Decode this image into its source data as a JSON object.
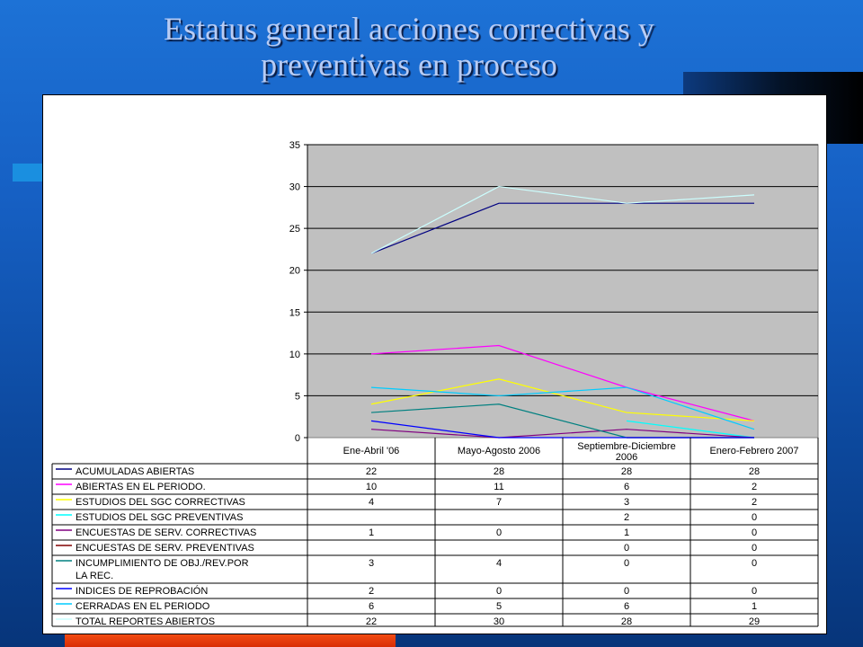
{
  "slide": {
    "title_line1": "Estatus general acciones correctivas y",
    "title_line2": "preventivas en proceso"
  },
  "colors": {
    "background": "#1660c4",
    "plot_area": "#c0c0c0",
    "accent_orange": "#e8410f"
  },
  "chart_data": {
    "type": "line",
    "categories": [
      "Ene-Abril '06",
      "Mayo-Agosto 2006",
      "Septiembre-Diciembre 2006",
      "Enero-Febrero 2007"
    ],
    "ylim": [
      0,
      35
    ],
    "yticks": [
      0,
      5,
      10,
      15,
      20,
      25,
      30,
      35
    ],
    "grid": true,
    "legend_placement": "data-table-below",
    "series": [
      {
        "name": "ACUMULADAS ABIERTAS",
        "color": "#000080",
        "values": [
          22,
          28,
          28,
          28
        ]
      },
      {
        "name": " ABIERTAS EN EL PERIODO.",
        "color": "#ff00ff",
        "values": [
          10,
          11,
          6,
          2
        ]
      },
      {
        "name": "ESTUDIOS DEL SGC CORRECTIVAS",
        "color": "#ffff00",
        "values": [
          4,
          7,
          3,
          2
        ]
      },
      {
        "name": "ESTUDIOS DEL SGC PREVENTIVAS",
        "color": "#00ffff",
        "values": [
          null,
          null,
          2,
          0
        ]
      },
      {
        "name": "ENCUESTAS DE SERV.  CORRECTIVAS",
        "color": "#800080",
        "values": [
          1,
          0,
          1,
          0
        ]
      },
      {
        "name": "ENCUESTAS DE SERV.  PREVENTIVAS",
        "color": "#800000",
        "values": [
          null,
          null,
          0,
          0
        ]
      },
      {
        "name": "INCUMPLIMIENTO DE OBJ./REV.POR LA REC.",
        "color": "#008080",
        "values": [
          3,
          4,
          0,
          0
        ]
      },
      {
        "name": "INDICES DE REPROBACIÓN",
        "color": "#0000ff",
        "values": [
          2,
          0,
          0,
          0
        ]
      },
      {
        "name": "CERRADAS EN EL PERIODO",
        "color": "#00ccff",
        "values": [
          6,
          5,
          6,
          1
        ]
      },
      {
        "name": "TOTAL REPORTES ABIERTOS",
        "color": "#ccffff",
        "values": [
          22,
          30,
          28,
          29
        ]
      }
    ]
  }
}
